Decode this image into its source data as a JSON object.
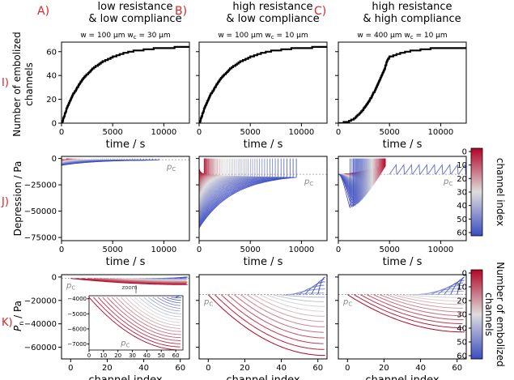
{
  "colors": {
    "panel_letter": "#d62728",
    "row_label": "#d62728",
    "reference_line": "#999999",
    "colormap_low": "#b40426",
    "colormap_mid": "#dddddd",
    "colormap_high": "#3b4cc0"
  },
  "columns": [
    {
      "letter": "A)",
      "title_line1": "low resistance",
      "title_line2": "& low compliance",
      "params_w": "w = 100 µm",
      "params_wc": "w",
      "params_wc_sub": "c",
      "params_wc_value": " = 30 µm"
    },
    {
      "letter": "B)",
      "title_line1": "high resistance",
      "title_line2": "& low compliance",
      "params_w": "w = 100 µm",
      "params_wc": "w",
      "params_wc_sub": "c",
      "params_wc_value": " = 10 µm"
    },
    {
      "letter": "C)",
      "title_line1": "high resistance",
      "title_line2": "& high compliance",
      "params_w": "w = 400 µm",
      "params_wc": "w",
      "params_wc_sub": "c",
      "params_wc_value": " = 10 µm"
    }
  ],
  "rows": [
    {
      "label": "I)",
      "ylabel_line1": "Number of embolized",
      "ylabel_line2": "channels",
      "xlabel": "time  /  s"
    },
    {
      "label": "J)",
      "ylabel": "Depression  /  Pa",
      "xlabel": "time  /  s"
    },
    {
      "label": "K)",
      "ylabel": "P",
      "ylabel_sub": "n",
      "ylabel_rest": "  /  Pa",
      "xlabel": "channel index"
    }
  ],
  "pc_label": "p",
  "pc_sub": "C",
  "zoom_label": "zoom",
  "colorbars": [
    {
      "label": "channel index",
      "ticks": [
        "0",
        "10",
        "20",
        "30",
        "40",
        "50",
        "60"
      ]
    },
    {
      "label_line1": "Number of embolized",
      "label_line2": "channels",
      "ticks": [
        "0",
        "10",
        "20",
        "30",
        "40",
        "50",
        "60"
      ]
    }
  ],
  "chart_data": [
    {
      "type": "line",
      "panel": "I-A",
      "x_range": [
        0,
        12500
      ],
      "ylim": [
        0,
        68
      ],
      "x_ticks": [
        0,
        5000,
        10000
      ],
      "y_ticks": [
        0,
        20,
        40,
        60
      ],
      "series": [
        {
          "x": [
            0,
            500,
            1000,
            2000,
            3000,
            4000,
            5000,
            6000,
            7000,
            8000,
            9000,
            10000,
            11000,
            12500
          ],
          "y": [
            0,
            13,
            23,
            37,
            46,
            52,
            56,
            59,
            61,
            62,
            63,
            63.5,
            64,
            64
          ]
        }
      ]
    },
    {
      "type": "line",
      "panel": "I-B",
      "x_range": [
        0,
        12500
      ],
      "ylim": [
        0,
        68
      ],
      "x_ticks": [
        0,
        5000,
        10000
      ],
      "y_ticks": [
        0,
        20,
        40,
        60
      ],
      "series": [
        {
          "x": [
            0,
            500,
            1000,
            2000,
            3000,
            4000,
            5000,
            6000,
            7000,
            8000,
            9000,
            10000,
            11000,
            12500
          ],
          "y": [
            0,
            13,
            23,
            37,
            46,
            52,
            56,
            59,
            61,
            62,
            63,
            63.5,
            64,
            64
          ]
        }
      ]
    },
    {
      "type": "line",
      "panel": "I-C",
      "x_range": [
        0,
        12500
      ],
      "ylim": [
        0,
        68
      ],
      "x_ticks": [
        0,
        5000,
        10000
      ],
      "y_ticks": [
        0,
        20,
        40,
        60
      ],
      "series": [
        {
          "x": [
            0,
            500,
            1000,
            1500,
            2000,
            2500,
            3000,
            3500,
            4000,
            4500,
            4800,
            5000,
            6000,
            7000,
            8000,
            9000,
            10000,
            12500
          ],
          "y": [
            0,
            1,
            2,
            4,
            8,
            13,
            19,
            27,
            36,
            46,
            54,
            56,
            59,
            61,
            62,
            63,
            63.5,
            64
          ]
        }
      ]
    },
    {
      "type": "line",
      "panel": "J-A",
      "x_range": [
        0,
        12500
      ],
      "ylim": [
        -78000,
        2000
      ],
      "x_ticks": [
        0,
        5000,
        10000
      ],
      "y_ticks": [
        0,
        -25000,
        -50000,
        -75000
      ],
      "pc_value": -1200,
      "min_depression": -6500,
      "n_series": 64
    },
    {
      "type": "line",
      "panel": "J-B",
      "x_range": [
        0,
        12500
      ],
      "ylim": [
        -78000,
        2000
      ],
      "x_ticks": [
        0,
        5000,
        10000
      ],
      "y_ticks": [
        0,
        -25000,
        -50000,
        -75000
      ],
      "pc_value": -15000,
      "min_depression": -66000,
      "n_series": 64
    },
    {
      "type": "line",
      "panel": "J-C",
      "x_range": [
        0,
        12500
      ],
      "ylim": [
        -78000,
        2000
      ],
      "x_ticks": [
        0,
        5000,
        10000
      ],
      "y_ticks": [
        0,
        -25000,
        -50000,
        -75000
      ],
      "pc_value": -15000,
      "min_depression": -47000,
      "n_series": 64
    },
    {
      "type": "line",
      "panel": "K-A",
      "x_range": [
        -5,
        65
      ],
      "ylim": [
        -70000,
        2000
      ],
      "x_ticks": [
        0,
        20,
        40,
        60
      ],
      "y_ticks": [
        0,
        -20000,
        -40000,
        -60000
      ],
      "pc_value": -1200,
      "inset": {
        "xlim": [
          0,
          65
        ],
        "ylim": [
          -7400,
          -3800
        ],
        "x_ticks": [
          0,
          10,
          20,
          30,
          40,
          50,
          60
        ],
        "y_ticks": [
          -4000,
          -5000,
          -6000,
          -7000
        ],
        "pc_value": -7000
      }
    },
    {
      "type": "line",
      "panel": "K-B",
      "x_range": [
        -5,
        65
      ],
      "ylim": [
        -70000,
        2000
      ],
      "x_ticks": [
        0,
        20,
        40,
        60
      ],
      "y_ticks": [
        0,
        -20000,
        -40000,
        -60000
      ],
      "pc_value": -15000,
      "min_pressure": -67000
    },
    {
      "type": "line",
      "panel": "K-C",
      "x_range": [
        -5,
        65
      ],
      "ylim": [
        -70000,
        2000
      ],
      "x_ticks": [
        0,
        20,
        40,
        60
      ],
      "y_ticks": [
        0,
        -20000,
        -40000,
        -60000
      ],
      "pc_value": -15000,
      "min_pressure": -47000
    }
  ]
}
